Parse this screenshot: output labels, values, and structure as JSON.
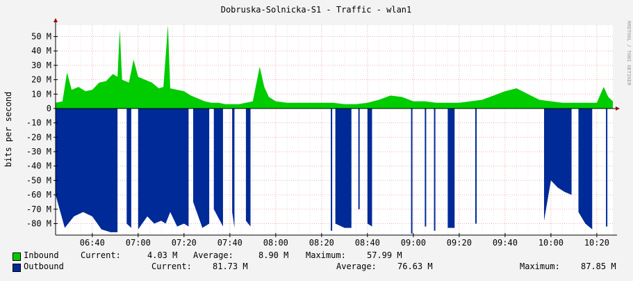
{
  "chart_data": {
    "type": "area",
    "title": "Dobruska-Solnicka-S1 - Traffic - wlan1",
    "ylabel": "bits per second",
    "watermark": "RRDTOOL / TOBI OETIKER",
    "y_ticks": [
      {
        "value": 50,
        "label": "50 M"
      },
      {
        "value": 40,
        "label": "40 M"
      },
      {
        "value": 30,
        "label": "30 M"
      },
      {
        "value": 20,
        "label": "20 M"
      },
      {
        "value": 10,
        "label": "10 M"
      },
      {
        "value": 0,
        "label": "0"
      },
      {
        "value": -10,
        "label": "-10 M"
      },
      {
        "value": -20,
        "label": "-20 M"
      },
      {
        "value": -30,
        "label": "-30 M"
      },
      {
        "value": -40,
        "label": "-40 M"
      },
      {
        "value": -50,
        "label": "-50 M"
      },
      {
        "value": -60,
        "label": "-60 M"
      },
      {
        "value": -70,
        "label": "-70 M"
      },
      {
        "value": -80,
        "label": "-80 M"
      }
    ],
    "ylim": [
      -88,
      58
    ],
    "x_range_minutes": [
      "06:24",
      "10:27"
    ],
    "x_ticks": [
      "06:40",
      "07:00",
      "07:20",
      "07:40",
      "08:00",
      "08:20",
      "08:40",
      "09:00",
      "09:20",
      "09:40",
      "10:00",
      "10:20"
    ],
    "grid": true,
    "series": [
      {
        "name": "Inbound",
        "color": "#00cc00",
        "points": [
          [
            "06:24",
            4
          ],
          [
            "06:27",
            5
          ],
          [
            "06:29",
            25
          ],
          [
            "06:31",
            13
          ],
          [
            "06:34",
            15
          ],
          [
            "06:37",
            12
          ],
          [
            "06:40",
            13
          ],
          [
            "06:43",
            18
          ],
          [
            "06:46",
            19
          ],
          [
            "06:49",
            24
          ],
          [
            "06:51",
            22
          ],
          [
            "06:52",
            55
          ],
          [
            "06:53",
            20
          ],
          [
            "06:56",
            18
          ],
          [
            "06:58",
            34
          ],
          [
            "07:00",
            22
          ],
          [
            "07:03",
            20
          ],
          [
            "07:06",
            18
          ],
          [
            "07:09",
            14
          ],
          [
            "07:11",
            15
          ],
          [
            "07:13",
            58
          ],
          [
            "07:14",
            14
          ],
          [
            "07:17",
            13
          ],
          [
            "07:20",
            12
          ],
          [
            "07:23",
            9
          ],
          [
            "07:26",
            7
          ],
          [
            "07:29",
            5
          ],
          [
            "07:32",
            4
          ],
          [
            "07:35",
            4
          ],
          [
            "07:38",
            3
          ],
          [
            "07:41",
            3
          ],
          [
            "07:44",
            3
          ],
          [
            "07:47",
            4
          ],
          [
            "07:50",
            5
          ],
          [
            "07:53",
            29
          ],
          [
            "07:55",
            15
          ],
          [
            "07:57",
            8
          ],
          [
            "08:00",
            5
          ],
          [
            "08:05",
            4
          ],
          [
            "08:10",
            4
          ],
          [
            "08:15",
            4
          ],
          [
            "08:20",
            4
          ],
          [
            "08:25",
            4
          ],
          [
            "08:30",
            3
          ],
          [
            "08:35",
            3
          ],
          [
            "08:40",
            4
          ],
          [
            "08:45",
            6
          ],
          [
            "08:50",
            9
          ],
          [
            "08:55",
            8
          ],
          [
            "09:00",
            5
          ],
          [
            "09:05",
            5
          ],
          [
            "09:10",
            4
          ],
          [
            "09:15",
            4
          ],
          [
            "09:20",
            4
          ],
          [
            "09:25",
            5
          ],
          [
            "09:30",
            6
          ],
          [
            "09:35",
            9
          ],
          [
            "09:40",
            12
          ],
          [
            "09:45",
            14
          ],
          [
            "09:50",
            10
          ],
          [
            "09:55",
            6
          ],
          [
            "10:00",
            5
          ],
          [
            "10:05",
            4
          ],
          [
            "10:10",
            4
          ],
          [
            "10:15",
            4
          ],
          [
            "10:20",
            4
          ],
          [
            "10:23",
            15
          ],
          [
            "10:25",
            8
          ],
          [
            "10:27",
            5
          ]
        ]
      },
      {
        "name": "Outbound",
        "color": "#002a97",
        "points": [
          [
            "06:24",
            -60
          ],
          [
            "06:28",
            -83
          ],
          [
            "06:32",
            -75
          ],
          [
            "06:36",
            -72
          ],
          [
            "06:40",
            -75
          ],
          [
            "06:44",
            -84
          ],
          [
            "06:48",
            -86
          ],
          [
            "06:51",
            -86
          ],
          [
            "06:52",
            null
          ],
          [
            "06:55",
            -80
          ],
          [
            "06:57",
            -83
          ],
          [
            "06:58",
            null
          ],
          [
            "07:00",
            -84
          ],
          [
            "07:04",
            -75
          ],
          [
            "07:07",
            -80
          ],
          [
            "07:10",
            -78
          ],
          [
            "07:12",
            -80
          ],
          [
            "07:14",
            -72
          ],
          [
            "07:17",
            -82
          ],
          [
            "07:20",
            -80
          ],
          [
            "07:22",
            -82
          ],
          [
            "07:23",
            null
          ],
          [
            "07:24",
            -65
          ],
          [
            "07:28",
            -83
          ],
          [
            "07:31",
            -80
          ],
          [
            "07:32",
            null
          ],
          [
            "07:33",
            -70
          ],
          [
            "07:37",
            -82
          ],
          [
            "07:38",
            null
          ],
          [
            "07:41",
            -72
          ],
          [
            "07:42",
            -83
          ],
          [
            "07:43",
            null
          ],
          [
            "07:47",
            -78
          ],
          [
            "07:49",
            -82
          ],
          [
            "07:50",
            null
          ],
          [
            "08:24",
            -85
          ],
          [
            "08:25",
            null
          ],
          [
            "08:26",
            -80
          ],
          [
            "08:30",
            -83
          ],
          [
            "08:33",
            -83
          ],
          [
            "08:34",
            null
          ],
          [
            "08:36",
            -70
          ],
          [
            "08:37",
            null
          ],
          [
            "08:40",
            -80
          ],
          [
            "08:42",
            -82
          ],
          [
            "08:43",
            null
          ],
          [
            "08:59",
            -87
          ],
          [
            "09:00",
            null
          ],
          [
            "09:05",
            -82
          ],
          [
            "09:06",
            null
          ],
          [
            "09:09",
            -85
          ],
          [
            "09:11",
            null
          ],
          [
            "09:15",
            -83
          ],
          [
            "09:18",
            -83
          ],
          [
            "09:19",
            null
          ],
          [
            "09:27",
            -80
          ],
          [
            "09:28",
            null
          ],
          [
            "09:57",
            -78
          ],
          [
            "10:00",
            -50
          ],
          [
            "10:03",
            -55
          ],
          [
            "10:06",
            -58
          ],
          [
            "10:09",
            -60
          ],
          [
            "10:11",
            null
          ],
          [
            "10:12",
            -72
          ],
          [
            "10:15",
            -80
          ],
          [
            "10:18",
            -84
          ],
          [
            "10:19",
            null
          ],
          [
            "10:24",
            -82
          ],
          [
            "10:25",
            null
          ]
        ]
      }
    ],
    "legend": {
      "inbound": {
        "label": "Inbound",
        "current_label": "Current:",
        "current": "4.03 M",
        "average_label": "Average:",
        "average": "8.90 M",
        "maximum_label": "Maximum:",
        "maximum": "57.99 M"
      },
      "outbound": {
        "label": "Outbound",
        "current_label": "Current:",
        "current": "81.73 M",
        "average_label": "Average:",
        "average": "76.63 M",
        "maximum_label": "Maximum:",
        "maximum": "87.85 M"
      }
    }
  }
}
